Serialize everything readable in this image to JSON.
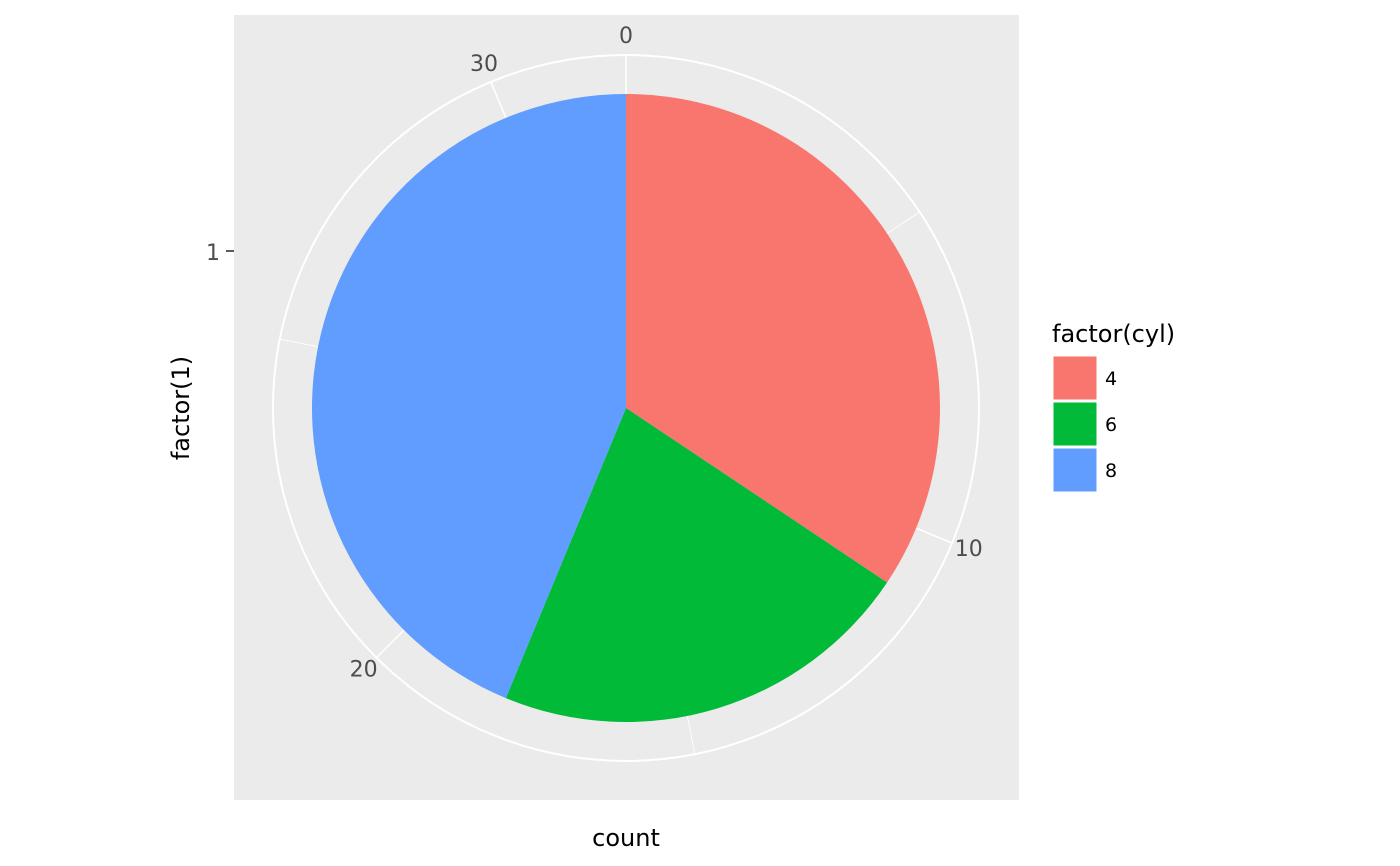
{
  "chart_data": {
    "type": "pie",
    "coord": "polar",
    "xlabel": "count",
    "ylabel": "factor(1)",
    "y_tick_labels": [
      "1"
    ],
    "theta_ticks": [
      0,
      10,
      20,
      30
    ],
    "theta_tick_labels": [
      "0",
      "10",
      "20",
      "30"
    ],
    "total": 32,
    "categories": [
      "4",
      "6",
      "8"
    ],
    "values": [
      11,
      7,
      14
    ],
    "colors": [
      "#F8766D",
      "#00BA38",
      "#619CFF"
    ],
    "panel_background": "#EBEBEB",
    "grid_color": "#FFFFFF",
    "legend": {
      "title": "factor(cyl)",
      "position": "right",
      "entries": [
        "4",
        "6",
        "8"
      ]
    }
  }
}
